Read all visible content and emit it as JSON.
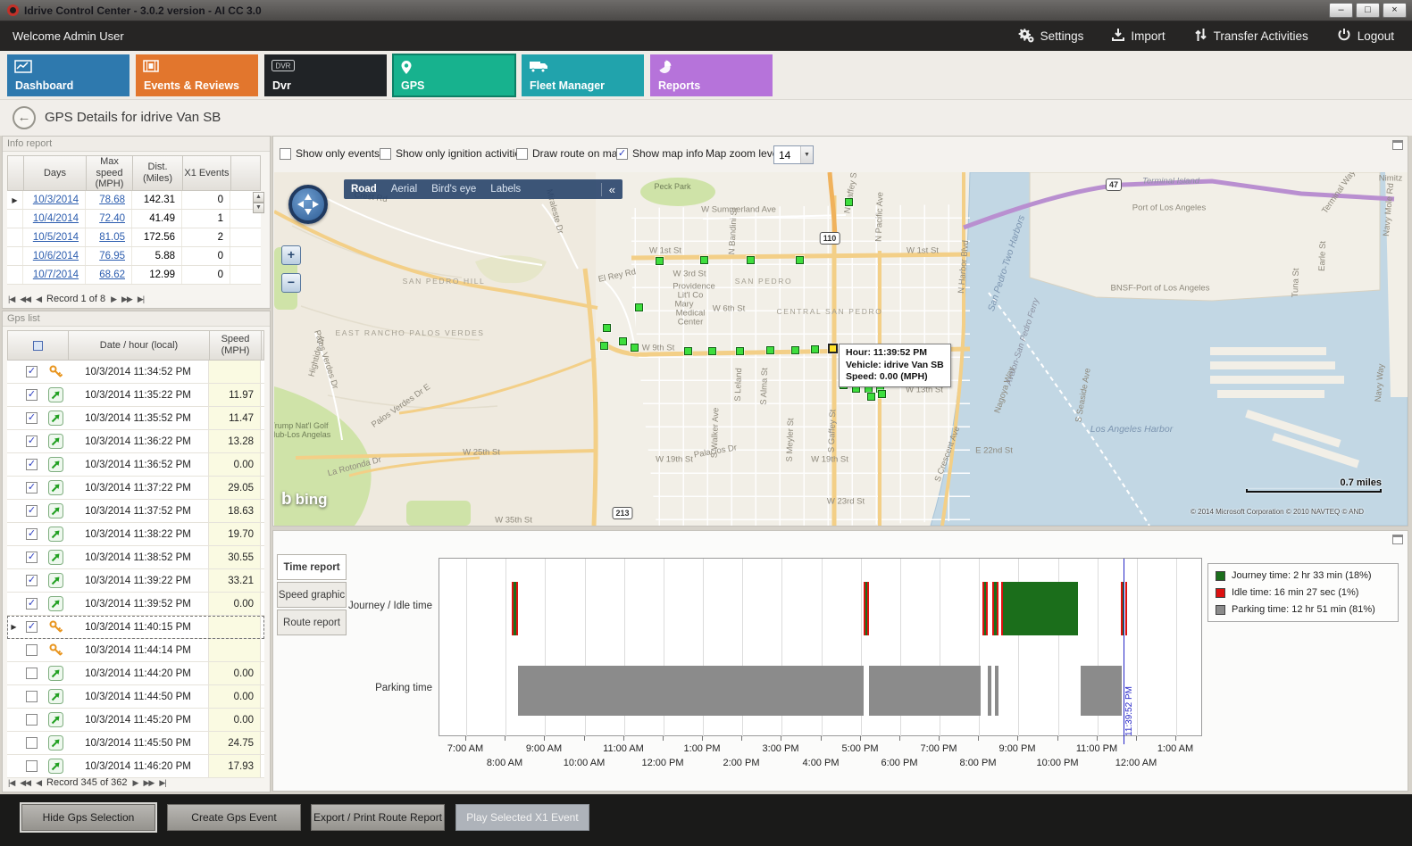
{
  "window": {
    "title": "Idrive Control Center - 3.0.2 version - AI CC 3.0",
    "controls": [
      "minimize",
      "maximize",
      "close"
    ]
  },
  "topbar": {
    "welcome": "Welcome Admin User",
    "actions": [
      {
        "id": "settings",
        "label": "Settings"
      },
      {
        "id": "import",
        "label": "Import"
      },
      {
        "id": "transfer",
        "label": "Transfer Activities"
      },
      {
        "id": "logout",
        "label": "Logout"
      }
    ]
  },
  "tabs": [
    {
      "id": "dashboard",
      "label": "Dashboard",
      "color": "#2e79ae",
      "active": false
    },
    {
      "id": "events",
      "label": "Events & Reviews",
      "color": "#e2762d",
      "active": false
    },
    {
      "id": "dvr",
      "label": "Dvr",
      "color": "#202326",
      "active": false
    },
    {
      "id": "gps",
      "label": "GPS",
      "color": "#17b28e",
      "active": true
    },
    {
      "id": "fleet",
      "label": "Fleet Manager",
      "color": "#21a3ac",
      "active": false
    },
    {
      "id": "reports",
      "label": "Reports",
      "color": "#b673da",
      "active": false
    }
  ],
  "page": {
    "title": "GPS Details for idrive Van SB"
  },
  "info_report": {
    "panel_title": "Info report",
    "columns": [
      "Days",
      "Max speed\n(MPH)",
      "Dist.\n(Miles)",
      "X1 Events"
    ],
    "rows": [
      {
        "day": "10/3/2014",
        "max_speed": "78.68",
        "dist": "142.31",
        "x1": "0",
        "selected": true
      },
      {
        "day": "10/4/2014",
        "max_speed": "72.40",
        "dist": "41.49",
        "x1": "1",
        "selected": false
      },
      {
        "day": "10/5/2014",
        "max_speed": "81.05",
        "dist": "172.56",
        "x1": "2",
        "selected": false
      },
      {
        "day": "10/6/2014",
        "max_speed": "76.95",
        "dist": "5.88",
        "x1": "0",
        "selected": false
      },
      {
        "day": "10/7/2014",
        "max_speed": "68.62",
        "dist": "12.99",
        "x1": "0",
        "selected": false
      }
    ],
    "pager_label": "Record 1 of 8"
  },
  "gps_list": {
    "panel_title": "Gps list",
    "columns": [
      "Date / hour (local)",
      "Speed\n(MPH)"
    ],
    "rows": [
      {
        "checked": true,
        "icon": "key",
        "datetime": "10/3/2014 11:34:52 PM",
        "speed": "",
        "selected": false
      },
      {
        "checked": true,
        "icon": "arrow",
        "datetime": "10/3/2014 11:35:22 PM",
        "speed": "11.97",
        "selected": false
      },
      {
        "checked": true,
        "icon": "arrow",
        "datetime": "10/3/2014 11:35:52 PM",
        "speed": "11.47",
        "selected": false
      },
      {
        "checked": true,
        "icon": "arrow",
        "datetime": "10/3/2014 11:36:22 PM",
        "speed": "13.28",
        "selected": false
      },
      {
        "checked": true,
        "icon": "arrow",
        "datetime": "10/3/2014 11:36:52 PM",
        "speed": "0.00",
        "selected": false
      },
      {
        "checked": true,
        "icon": "arrow",
        "datetime": "10/3/2014 11:37:22 PM",
        "speed": "29.05",
        "selected": false
      },
      {
        "checked": true,
        "icon": "arrow",
        "datetime": "10/3/2014 11:37:52 PM",
        "speed": "18.63",
        "selected": false
      },
      {
        "checked": true,
        "icon": "arrow",
        "datetime": "10/3/2014 11:38:22 PM",
        "speed": "19.70",
        "selected": false
      },
      {
        "checked": true,
        "icon": "arrow",
        "datetime": "10/3/2014 11:38:52 PM",
        "speed": "30.55",
        "selected": false
      },
      {
        "checked": true,
        "icon": "arrow",
        "datetime": "10/3/2014 11:39:22 PM",
        "speed": "33.21",
        "selected": false
      },
      {
        "checked": true,
        "icon": "arrow",
        "datetime": "10/3/2014 11:39:52 PM",
        "speed": "0.00",
        "selected": false
      },
      {
        "checked": true,
        "icon": "key",
        "datetime": "10/3/2014 11:40:15 PM",
        "speed": "",
        "selected": true
      },
      {
        "checked": false,
        "icon": "key",
        "datetime": "10/3/2014 11:44:14 PM",
        "speed": "",
        "selected": false
      },
      {
        "checked": false,
        "icon": "arrow",
        "datetime": "10/3/2014 11:44:20 PM",
        "speed": "0.00",
        "selected": false
      },
      {
        "checked": false,
        "icon": "arrow",
        "datetime": "10/3/2014 11:44:50 PM",
        "speed": "0.00",
        "selected": false
      },
      {
        "checked": false,
        "icon": "arrow",
        "datetime": "10/3/2014 11:45:20 PM",
        "speed": "0.00",
        "selected": false
      },
      {
        "checked": false,
        "icon": "arrow",
        "datetime": "10/3/2014 11:45:50 PM",
        "speed": "24.75",
        "selected": false
      },
      {
        "checked": false,
        "icon": "arrow",
        "datetime": "10/3/2014 11:46:20 PM",
        "speed": "17.93",
        "selected": false
      }
    ],
    "pager_label": "Record 345 of 362"
  },
  "map_bar": {
    "checkboxes": [
      {
        "label": "Show only events",
        "checked": false
      },
      {
        "label": "Show only ignition activities",
        "checked": false
      },
      {
        "label": "Draw route on map",
        "checked": false
      },
      {
        "label": "Show map info",
        "checked": true
      }
    ],
    "zoom_label": "Map zoom level",
    "zoom_value": "14"
  },
  "map": {
    "views": [
      {
        "label": "Road",
        "active": true
      },
      {
        "label": "Aerial",
        "active": false
      },
      {
        "label": "Bird's eye",
        "active": false
      },
      {
        "label": "Labels",
        "active": false
      }
    ],
    "collapse_glyph": "«",
    "tooltip": {
      "lines": [
        "Hour: 11:39:52 PM",
        "Vehicle: idrive Van SB",
        "Speed: 0.00 (MPH)"
      ]
    },
    "scale_text": "0.7 miles",
    "copyright": "© 2014 Microsoft Corporation  © 2010 NAVTEQ  © AND",
    "logo_text": "bing",
    "shields": [
      [
        "110",
        622,
        74
      ],
      [
        "47",
        940,
        14
      ],
      [
        "213",
        390,
        382
      ]
    ],
    "labels": [
      [
        "Peck Park",
        446,
        16,
        0,
        "p"
      ],
      [
        "Crest Rd",
        108,
        28,
        8,
        "r"
      ],
      [
        "W Summerland Ave",
        520,
        42,
        0,
        "r"
      ],
      [
        "Miraleste Dr",
        314,
        44,
        75,
        "r"
      ],
      [
        "N Bandini St",
        514,
        66,
        -87,
        "r"
      ],
      [
        "W 1st St",
        438,
        88,
        0,
        "r"
      ],
      [
        "W 1st St",
        726,
        88,
        0,
        "r"
      ],
      [
        "SAN PEDRO HILL",
        190,
        122,
        0,
        "a"
      ],
      [
        "El Rey Rd",
        384,
        116,
        -12,
        "r"
      ],
      [
        "W 3rd St",
        465,
        114,
        0,
        "r"
      ],
      [
        "Providence",
        470,
        128,
        0,
        "r"
      ],
      [
        "Lit'l Co",
        466,
        138,
        0,
        "r"
      ],
      [
        "Mary",
        459,
        148,
        0,
        "r"
      ],
      [
        "Medical",
        466,
        158,
        0,
        "r"
      ],
      [
        "Center",
        466,
        168,
        0,
        "r"
      ],
      [
        "W 6th St",
        509,
        153,
        0,
        "r"
      ],
      [
        "SAN PEDRO",
        548,
        122,
        0,
        "a"
      ],
      [
        "CENTRAL SAN PEDRO",
        622,
        156,
        0,
        "a"
      ],
      [
        "EAST RANCHO PALOS VERDES",
        152,
        180,
        0,
        "a"
      ],
      [
        "W 9th St",
        430,
        197,
        0,
        "r"
      ],
      [
        "W 13th St",
        728,
        244,
        0,
        "r"
      ],
      [
        "S Leland",
        520,
        238,
        -88,
        "r"
      ],
      [
        "S Alma St",
        549,
        240,
        -88,
        "r"
      ],
      [
        "S Walker Ave",
        494,
        292,
        -88,
        "r"
      ],
      [
        "S Meyler St",
        578,
        300,
        -88,
        "r"
      ],
      [
        "S Gaffey St",
        625,
        290,
        -88,
        "r"
      ],
      [
        "N Gaffey St",
        646,
        22,
        -80,
        "r"
      ],
      [
        "N Pacific Ave",
        678,
        50,
        -88,
        "r"
      ],
      [
        "N Harbor Blvd",
        772,
        106,
        -85,
        "r"
      ],
      [
        "S Crescent Ave",
        754,
        316,
        -70,
        "r"
      ],
      [
        "E 22nd St",
        806,
        312,
        0,
        "r"
      ],
      [
        "W 19th St",
        448,
        322,
        0,
        "r"
      ],
      [
        "W 19th St",
        622,
        322,
        0,
        "r"
      ],
      [
        "W 25th St",
        232,
        314,
        0,
        "r"
      ],
      [
        "W 23rd St",
        640,
        369,
        0,
        "r"
      ],
      [
        "W 35th St",
        268,
        390,
        0,
        "r"
      ],
      [
        "Palos Verdes Dr",
        58,
        210,
        72,
        "r"
      ],
      [
        "Palos Verdes Dr E",
        142,
        262,
        -35,
        "r"
      ],
      [
        "La Rotonda Dr",
        90,
        330,
        -15,
        "r"
      ],
      [
        "Trump Nat'l Golf",
        28,
        284,
        0,
        "p"
      ],
      [
        "Club-Los Angelas",
        28,
        294,
        0,
        "p"
      ],
      [
        "Hightide Dr",
        48,
        206,
        -75,
        "r"
      ],
      [
        "Palacios Dr",
        494,
        313,
        -10,
        "r"
      ],
      [
        "Terminal Island",
        1004,
        10,
        0,
        "i"
      ],
      [
        "Port of Los Angeles",
        1002,
        40,
        0,
        "r"
      ],
      [
        "BNSF-Port of Los Angeles",
        992,
        130,
        0,
        "r"
      ],
      [
        "Los Angeles Harbor",
        960,
        288,
        0,
        "w"
      ],
      [
        "S Seaside Ave",
        906,
        250,
        -80,
        "r"
      ],
      [
        "Nagoya Way",
        818,
        244,
        -72,
        "r"
      ],
      [
        "Avalon-San Pedro Ferry",
        838,
        190,
        -72,
        "i"
      ],
      [
        "San Pedro-Two Harbors",
        820,
        102,
        -72,
        "w"
      ],
      [
        "Navy Mole Rd",
        1248,
        42,
        -85,
        "r"
      ],
      [
        "Nimitz",
        1250,
        7,
        0,
        "r"
      ],
      [
        "Navy Way",
        1238,
        236,
        -85,
        "r"
      ],
      [
        "Terminal Way",
        1192,
        22,
        -55,
        "r"
      ],
      [
        "Earle St",
        1174,
        94,
        -88,
        "r"
      ],
      [
        "Tuna St",
        1144,
        124,
        -88,
        "r"
      ]
    ],
    "markers": [
      [
        644,
        34
      ],
      [
        432,
        100
      ],
      [
        482,
        99
      ],
      [
        534,
        99
      ],
      [
        589,
        99
      ],
      [
        409,
        152
      ],
      [
        373,
        175
      ],
      [
        370,
        195
      ],
      [
        391,
        190
      ],
      [
        404,
        197
      ],
      [
        464,
        201
      ],
      [
        491,
        201
      ],
      [
        522,
        201
      ],
      [
        556,
        200
      ],
      [
        584,
        200
      ],
      [
        606,
        199
      ],
      [
        638,
        239
      ],
      [
        652,
        243
      ],
      [
        666,
        243
      ],
      [
        679,
        243
      ],
      [
        669,
        252
      ],
      [
        681,
        249
      ]
    ],
    "selected_marker": [
      626,
      198
    ]
  },
  "time_report": {
    "tabs": [
      {
        "label": "Time report",
        "active": true
      },
      {
        "label": "Speed graphic",
        "active": false
      },
      {
        "label": "Route report",
        "active": false
      }
    ]
  },
  "chart_data": {
    "type": "timeline",
    "rows": [
      "Journey / Idle time",
      "Parking time"
    ],
    "x_ticks": [
      "7:00 AM",
      "8:00 AM",
      "9:00 AM",
      "10:00 AM",
      "11:00 AM",
      "12:00 PM",
      "1:00 PM",
      "2:00 PM",
      "3:00 PM",
      "4:00 PM",
      "5:00 PM",
      "6:00 PM",
      "7:00 PM",
      "8:00 PM",
      "9:00 PM",
      "10:00 PM",
      "11:00 PM",
      "12:00 AM",
      "1:00 AM"
    ],
    "x_unit": "hours after 7:00 AM",
    "segments": [
      [
        0,
        1.16,
        1.21,
        "idle"
      ],
      [
        0,
        1.21,
        1.27,
        "journey"
      ],
      [
        0,
        1.27,
        1.32,
        "idle"
      ],
      [
        0,
        10.07,
        10.12,
        "idle"
      ],
      [
        0,
        10.12,
        10.17,
        "journey"
      ],
      [
        0,
        10.17,
        10.22,
        "idle"
      ],
      [
        0,
        13.08,
        13.13,
        "idle"
      ],
      [
        0,
        13.13,
        13.17,
        "journey"
      ],
      [
        0,
        13.17,
        13.22,
        "idle"
      ],
      [
        0,
        13.33,
        13.38,
        "idle"
      ],
      [
        0,
        13.38,
        13.44,
        "journey"
      ],
      [
        0,
        13.44,
        13.49,
        "idle"
      ],
      [
        0,
        13.55,
        13.6,
        "idle"
      ],
      [
        0,
        13.6,
        15.51,
        "journey"
      ],
      [
        0,
        16.59,
        16.64,
        "idle"
      ],
      [
        0,
        16.64,
        16.7,
        "journey"
      ],
      [
        0,
        16.7,
        16.76,
        "idle"
      ],
      [
        1,
        1.32,
        10.07,
        "parking"
      ],
      [
        1,
        10.22,
        13.05,
        "parking"
      ],
      [
        1,
        13.22,
        13.32,
        "parking"
      ],
      [
        1,
        13.4,
        13.5,
        "parking"
      ],
      [
        1,
        15.57,
        16.63,
        "parking"
      ]
    ],
    "cursor": {
      "hour": 16.664,
      "label": "11:39:52 PM"
    },
    "colors": {
      "journey": "#1b6e1b",
      "idle": "#dd1111",
      "parking": "#8b8b8b"
    },
    "legend": [
      {
        "kind": "journey",
        "label": "Journey time: 2 hr 33 min (18%)"
      },
      {
        "kind": "idle",
        "label": "Idle time: 16 min 27 sec (1%)"
      },
      {
        "kind": "parking",
        "label": "Parking time: 12 hr 51 min (81%)"
      }
    ]
  },
  "footer": {
    "buttons": [
      {
        "label": "Hide Gps Selection",
        "state": "focused"
      },
      {
        "label": "Create Gps Event",
        "state": "normal"
      },
      {
        "label": "Export / Print Route Report",
        "state": "normal"
      },
      {
        "label": "Play Selected X1 Event",
        "state": "disabled"
      }
    ]
  }
}
